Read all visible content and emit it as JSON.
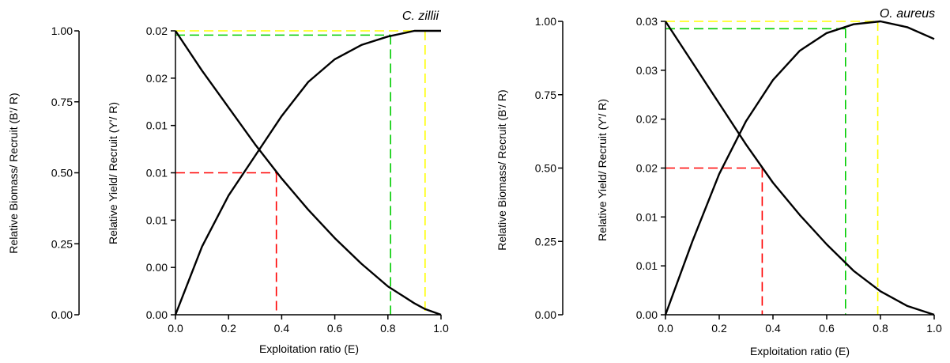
{
  "colors": {
    "curve": "#000000",
    "ref_red": "#ff0000",
    "ref_green": "#00cc00",
    "ref_yellow": "#ffff00"
  },
  "chart_data": [
    {
      "type": "line",
      "title": "C. zillii",
      "xlabel": "Exploitation ratio (E)",
      "ylabel_left": "Relative Biomass/ Recruit (B'/ R)",
      "ylabel_right": "Relative Yield/ Recruit (Y'/ R)",
      "xlim": [
        0,
        1
      ],
      "ylim_left": [
        0,
        1
      ],
      "ylim_right": [
        0,
        1
      ],
      "x_ticks": [
        "0.0",
        "0.2",
        "0.4",
        "0.6",
        "0.8",
        "1.0"
      ],
      "biomass_ticks": [
        "0.00",
        "0.25",
        "0.50",
        "0.75",
        "1.00"
      ],
      "biomass_highlight_tick": "0.50",
      "yield_ticks": [
        "0.00",
        "0.00",
        "0.01",
        "0.01",
        "0.01",
        "0.02",
        "0.02"
      ],
      "series": [
        {
          "x": [
            0,
            0.1,
            0.2,
            0.3,
            0.4,
            0.5,
            0.6,
            0.7,
            0.8,
            0.9,
            0.94,
            1.0
          ],
          "y": [
            1.0,
            0.86,
            0.73,
            0.6,
            0.48,
            0.37,
            0.27,
            0.18,
            0.1,
            0.04,
            0.02,
            0.0
          ]
        },
        {
          "x": [
            0,
            0.1,
            0.2,
            0.3,
            0.4,
            0.5,
            0.6,
            0.7,
            0.8,
            0.9,
            0.94,
            1.0
          ],
          "y": [
            0,
            0.24,
            0.42,
            0.56,
            0.7,
            0.82,
            0.9,
            0.95,
            0.98,
            1.0,
            1.0,
            1.0
          ]
        }
      ],
      "ref_lines": [
        {
          "color": "red",
          "x": 0.38,
          "y": 0.5
        },
        {
          "color": "green",
          "x": 0.81,
          "y": 0.985
        },
        {
          "color": "yellow",
          "x": 0.94,
          "y": 1.0
        }
      ]
    },
    {
      "type": "line",
      "title": "O. aureus",
      "xlabel": "Exploitation ratio (E)",
      "ylabel_left": "Relative Biomass/ Recruit (B'/ R)",
      "ylabel_right": "Relative Yield/ Recruit (Y'/ R)",
      "xlim": [
        0,
        1
      ],
      "ylim_left": [
        0,
        1
      ],
      "ylim_right": [
        0,
        1
      ],
      "x_ticks": [
        "0.0",
        "0.2",
        "0.4",
        "0.6",
        "0.8",
        "1.0"
      ],
      "biomass_ticks": [
        "0.00",
        "0.25",
        "0.50",
        "0.75",
        "1.00"
      ],
      "biomass_highlight_tick": "0.50",
      "yield_ticks": [
        "0.00",
        "0.01",
        "0.01",
        "0.02",
        "0.02",
        "0.03",
        "0.03"
      ],
      "series": [
        {
          "x": [
            0,
            0.1,
            0.2,
            0.3,
            0.4,
            0.5,
            0.6,
            0.7,
            0.8,
            0.9,
            1.0
          ],
          "y": [
            1.0,
            0.86,
            0.72,
            0.58,
            0.45,
            0.34,
            0.24,
            0.15,
            0.08,
            0.03,
            0.0
          ]
        },
        {
          "x": [
            0,
            0.1,
            0.2,
            0.3,
            0.4,
            0.5,
            0.6,
            0.7,
            0.8,
            0.9,
            1.0
          ],
          "y": [
            0,
            0.25,
            0.48,
            0.66,
            0.8,
            0.9,
            0.96,
            0.99,
            1.0,
            0.98,
            0.94
          ]
        }
      ],
      "ref_lines": [
        {
          "color": "red",
          "x": 0.36,
          "y": 0.5
        },
        {
          "color": "green",
          "x": 0.67,
          "y": 0.975
        },
        {
          "color": "yellow",
          "x": 0.79,
          "y": 1.0
        }
      ]
    }
  ]
}
